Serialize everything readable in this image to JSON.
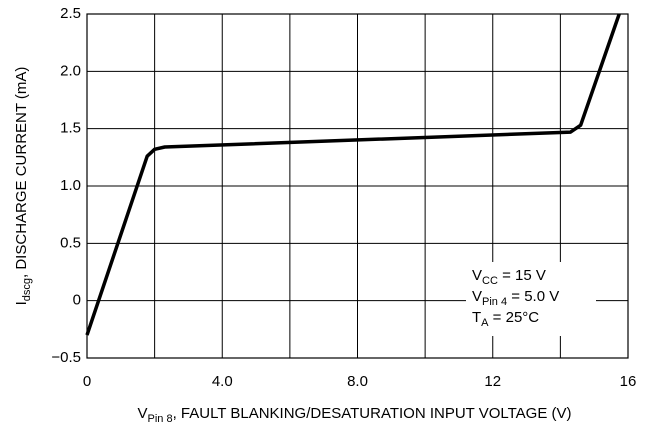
{
  "chart_data": {
    "type": "line",
    "x_label": {
      "base": "V",
      "sub": "Pin 8",
      "rest": ", FAULT BLANKING/DESATURATION INPUT VOLTAGE (V)"
    },
    "y_label": {
      "base": "I",
      "sub": "dscg",
      "rest": ", DISCHARGE CURRENT (mA)"
    },
    "x": [
      0,
      1.78,
      2.0,
      2.3,
      14.3,
      14.6,
      15.74
    ],
    "values": [
      -0.3,
      1.26,
      1.32,
      1.34,
      1.47,
      1.53,
      2.5
    ],
    "color": "#000000",
    "xlim": [
      0,
      16
    ],
    "ylim": [
      -0.5,
      2.5
    ],
    "xticks": [
      0,
      {
        "value": 4,
        "label": "4.0"
      },
      {
        "value": 8,
        "label": "8.0"
      },
      12,
      16
    ],
    "x_gridlines": [
      0,
      2,
      4,
      6,
      8,
      10,
      12,
      14,
      16
    ],
    "yticks": [
      {
        "value": -0.5,
        "label": "−0.5"
      },
      0,
      0.5,
      {
        "value": 1,
        "label": "1.0"
      },
      1.5,
      {
        "value": 2,
        "label": "2.0"
      },
      2.5
    ],
    "grid": true,
    "annotations": [
      {
        "base": "V",
        "sub": "CC",
        "rest": " = 15 V"
      },
      {
        "base": "V",
        "sub": "Pin 4",
        "rest": " = 5.0 V"
      },
      {
        "base": "T",
        "sub": "A",
        "rest": " = 25°C"
      }
    ]
  }
}
